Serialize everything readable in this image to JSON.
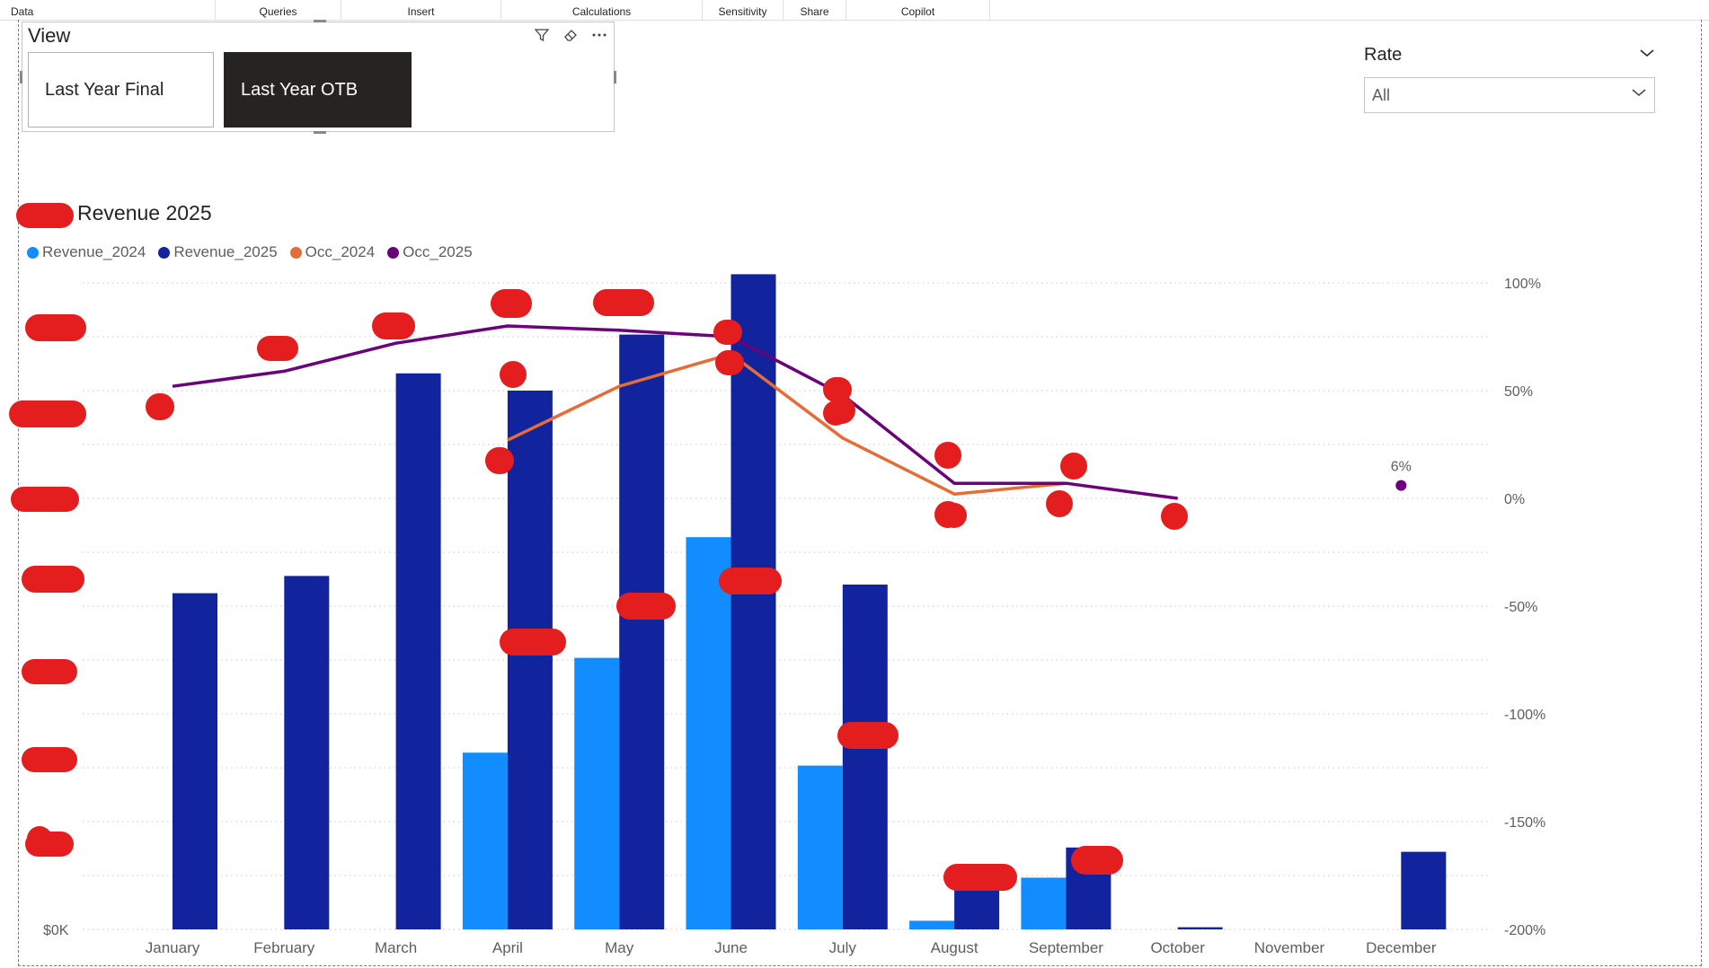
{
  "ribbon": {
    "tabs": [
      "Data",
      "Queries",
      "Insert",
      "Calculations",
      "Sensitivity",
      "Share",
      "Copilot"
    ]
  },
  "view_slicer": {
    "title": "View",
    "options": [
      "Last Year Final",
      "Last Year OTB"
    ],
    "selected": "Last Year OTB"
  },
  "rate_slicer": {
    "title": "Rate",
    "value": "All"
  },
  "chart_data": {
    "type": "bar",
    "title": "Revenue 2025",
    "categories": [
      "January",
      "February",
      "March",
      "April",
      "May",
      "June",
      "July",
      "August",
      "September",
      "October",
      "November",
      "December"
    ],
    "series": [
      {
        "name": "Revenue_2024",
        "kind": "bar",
        "axis": "left",
        "color": "#118dff",
        "values": [
          0,
          0,
          0,
          0.41,
          0.63,
          0.91,
          0.38,
          0.02,
          0.12,
          0,
          0,
          0
        ]
      },
      {
        "name": "Revenue_2025",
        "kind": "bar",
        "axis": "left",
        "color": "#12239e",
        "values": [
          0.78,
          0.82,
          1.29,
          1.25,
          1.38,
          1.52,
          0.8,
          0.12,
          0.19,
          0.005,
          0,
          0.18
        ]
      },
      {
        "name": "Occ_2024",
        "kind": "line",
        "axis": "right",
        "color": "#e66c37",
        "values": [
          null,
          null,
          null,
          27,
          52,
          67,
          28,
          2,
          7,
          null,
          null,
          null
        ]
      },
      {
        "name": "Occ_2025",
        "kind": "line",
        "axis": "right",
        "color": "#6b007b",
        "values": [
          52,
          59,
          72,
          80,
          78,
          75,
          48,
          7,
          7,
          0,
          null,
          6
        ]
      }
    ],
    "y_left": {
      "min": 0,
      "max": 1.5,
      "first_tick_label": "$0K"
    },
    "y_right": {
      "min": -200,
      "max": 100,
      "ticks": [
        100,
        50,
        0,
        -50,
        -100,
        -150,
        -200
      ],
      "tick_labels": [
        "100%",
        "50%",
        "0%",
        "-50%",
        "-100%",
        "-150%",
        "-200%"
      ]
    },
    "visible_data_labels": [
      {
        "category": "December",
        "series": "Occ_2025",
        "text": "6%"
      }
    ],
    "grid": "horizontal dotted",
    "legend_position": "top-left"
  },
  "colors": {
    "revenue_2024": "#118dff",
    "revenue_2025": "#12239e",
    "occ_2024": "#e66c37",
    "occ_2025": "#6b007b",
    "redaction": "#e41e1e"
  }
}
